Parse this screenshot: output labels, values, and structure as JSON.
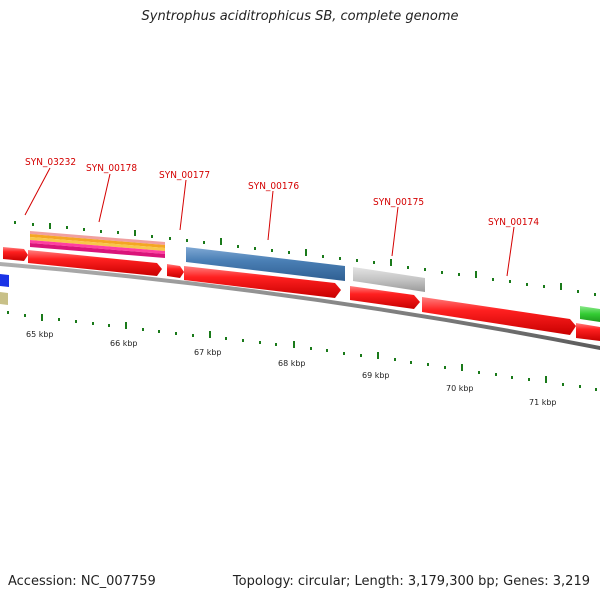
{
  "title": "Syntrophus aciditrophicus SB, complete genome",
  "footer": {
    "accession": "Accession: NC_007759",
    "summary": "Topology: circular; Length: 3,179,300 bp; Genes: 3,219"
  },
  "gene_labels": [
    {
      "id": "SYN_03232"
    },
    {
      "id": "SYN_00178"
    },
    {
      "id": "SYN_00177"
    },
    {
      "id": "SYN_00176"
    },
    {
      "id": "SYN_00175"
    },
    {
      "id": "SYN_00174"
    }
  ],
  "ruler_labels": [
    "65 kbp",
    "66 kbp",
    "67 kbp",
    "68 kbp",
    "69 kbp",
    "70 kbp",
    "71 kbp"
  ],
  "colors": {
    "label_text": "#d40000",
    "tick": "#1a7a1a",
    "gene_red": "#ff1a1a",
    "cds_blue": "#4a7fb5",
    "cds_gray": "#b8b8b8",
    "cds_green": "#33cc33",
    "backbone": "#7a7a7a"
  }
}
